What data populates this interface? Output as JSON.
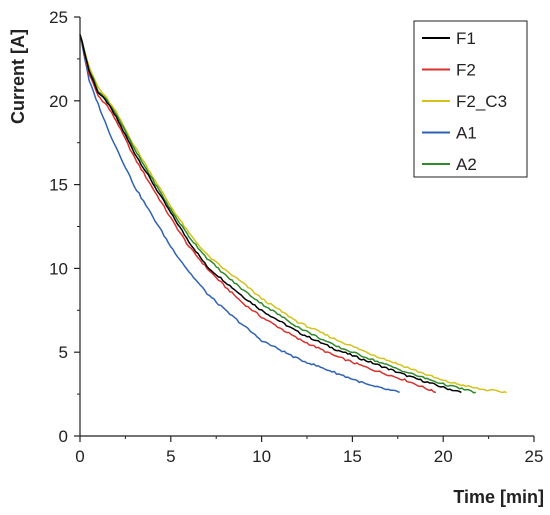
{
  "chart_data": {
    "type": "line",
    "xlabel": "Time [min]",
    "ylabel": "Current [A]",
    "xlim": [
      0,
      25
    ],
    "ylim": [
      0,
      25
    ],
    "x_ticks": [
      0,
      5,
      10,
      15,
      20,
      25
    ],
    "y_ticks": [
      0,
      5,
      10,
      15,
      20,
      25
    ],
    "grid": false,
    "legend_position": "top-right",
    "series": [
      {
        "name": "F1",
        "color": "#000000",
        "points": [
          [
            0,
            24
          ],
          [
            0.5,
            21.8
          ],
          [
            1,
            20.5
          ],
          [
            1.5,
            19.9
          ],
          [
            2,
            19
          ],
          [
            3,
            16.9
          ],
          [
            4,
            15.1
          ],
          [
            5,
            13.3
          ],
          [
            6,
            11.6
          ],
          [
            7,
            10.1
          ],
          [
            8,
            9.2
          ],
          [
            9,
            8.3
          ],
          [
            10,
            7.5
          ],
          [
            12,
            6.2
          ],
          [
            14,
            5.2
          ],
          [
            16,
            4.4
          ],
          [
            18,
            3.6
          ],
          [
            20,
            2.9
          ],
          [
            21,
            2.6
          ]
        ]
      },
      {
        "name": "F2",
        "color": "#d9312e",
        "points": [
          [
            0,
            24
          ],
          [
            0.5,
            21.6
          ],
          [
            1,
            20.3
          ],
          [
            1.5,
            19.7
          ],
          [
            2,
            18.8
          ],
          [
            3,
            16.6
          ],
          [
            4,
            14.8
          ],
          [
            5,
            13
          ],
          [
            6,
            11.3
          ],
          [
            7,
            10
          ],
          [
            8,
            8.9
          ],
          [
            9,
            7.9
          ],
          [
            10,
            7.1
          ],
          [
            12,
            5.8
          ],
          [
            14,
            4.8
          ],
          [
            16,
            4
          ],
          [
            18,
            3.3
          ],
          [
            19.6,
            2.6
          ]
        ]
      },
      {
        "name": "F2_C3",
        "color": "#d4c21b",
        "points": [
          [
            0,
            24
          ],
          [
            0.5,
            22
          ],
          [
            1,
            20.8
          ],
          [
            1.5,
            20.1
          ],
          [
            2,
            19.3
          ],
          [
            3,
            17.3
          ],
          [
            4,
            15.5
          ],
          [
            5,
            13.7
          ],
          [
            6,
            12.1
          ],
          [
            7,
            10.8
          ],
          [
            8,
            9.9
          ],
          [
            9,
            9.1
          ],
          [
            10,
            8.2
          ],
          [
            12,
            6.8
          ],
          [
            14,
            5.8
          ],
          [
            16,
            4.9
          ],
          [
            18,
            4.1
          ],
          [
            20,
            3.3
          ],
          [
            22,
            2.8
          ],
          [
            23.5,
            2.6
          ]
        ]
      },
      {
        "name": "A1",
        "color": "#2f62b3",
        "points": [
          [
            0,
            24
          ],
          [
            0.5,
            21.2
          ],
          [
            1,
            19.8
          ],
          [
            1.5,
            18.4
          ],
          [
            2,
            17.2
          ],
          [
            3,
            14.9
          ],
          [
            4,
            13.1
          ],
          [
            5,
            11.3
          ],
          [
            6,
            9.8
          ],
          [
            7,
            8.5
          ],
          [
            8,
            7.5
          ],
          [
            9,
            6.6
          ],
          [
            10,
            5.7
          ],
          [
            12,
            4.6
          ],
          [
            14,
            3.8
          ],
          [
            16,
            3
          ],
          [
            17.6,
            2.6
          ]
        ]
      },
      {
        "name": "A2",
        "color": "#2f8a2c",
        "points": [
          [
            0,
            24
          ],
          [
            0.5,
            21.9
          ],
          [
            1,
            20.6
          ],
          [
            1.5,
            20
          ],
          [
            2,
            19.2
          ],
          [
            3,
            17.1
          ],
          [
            4,
            15.3
          ],
          [
            5,
            13.5
          ],
          [
            6,
            11.9
          ],
          [
            7,
            10.6
          ],
          [
            8,
            9.6
          ],
          [
            9,
            8.7
          ],
          [
            10,
            7.9
          ],
          [
            12,
            6.5
          ],
          [
            14,
            5.4
          ],
          [
            16,
            4.6
          ],
          [
            18,
            3.8
          ],
          [
            20,
            3.1
          ],
          [
            21.8,
            2.6
          ]
        ]
      }
    ]
  }
}
